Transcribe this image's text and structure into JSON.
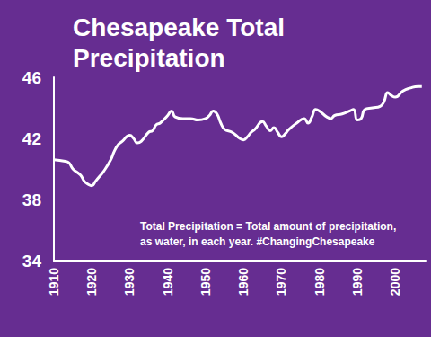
{
  "chart_data": {
    "type": "line",
    "title": "Chesapeake Total\nPrecipitation",
    "annotation": "Total Precipitation = Total amount of precipitation,\nas water, in each year. #ChangingChesapeake",
    "x": [
      1910,
      1913,
      1914,
      1915,
      1917,
      1918,
      1919,
      1920,
      1921,
      1922,
      1923,
      1925,
      1926,
      1927,
      1928,
      1930,
      1931,
      1932,
      1933,
      1935,
      1936,
      1937,
      1938,
      1940,
      1941,
      1942,
      1944,
      1946,
      1948,
      1950,
      1951,
      1952,
      1953,
      1954,
      1955,
      1957,
      1959,
      1960,
      1961,
      1962,
      1963,
      1965,
      1966,
      1967,
      1968,
      1969,
      1970,
      1971,
      1972,
      1974,
      1976,
      1977,
      1978,
      1979,
      1980,
      1982,
      1983,
      1984,
      1986,
      1988,
      1989,
      1990,
      1991,
      1992,
      1994,
      1996,
      1997,
      1998,
      1999,
      2000,
      2002,
      2004,
      2006,
      2007
    ],
    "values": [
      40.6,
      40.5,
      40.4,
      40.0,
      39.6,
      39.2,
      39.0,
      38.9,
      39.2,
      39.5,
      39.8,
      40.6,
      41.2,
      41.6,
      41.8,
      42.2,
      42.0,
      41.7,
      41.8,
      42.4,
      42.5,
      42.9,
      43.0,
      43.5,
      43.8,
      43.4,
      43.3,
      43.3,
      43.2,
      43.3,
      43.5,
      43.8,
      43.6,
      43.0,
      42.6,
      42.4,
      42.0,
      41.9,
      42.1,
      42.4,
      42.6,
      43.1,
      42.8,
      42.5,
      42.7,
      42.4,
      42.1,
      42.3,
      42.6,
      43.0,
      43.3,
      43.0,
      43.4,
      43.9,
      43.8,
      43.4,
      43.3,
      43.5,
      43.6,
      43.8,
      43.9,
      43.2,
      43.3,
      43.9,
      44.0,
      44.1,
      44.4,
      45.0,
      44.8,
      44.7,
      45.1,
      45.3,
      45.4,
      45.4
    ],
    "color": "#ffffff",
    "xlim": [
      1910,
      2008
    ],
    "xticks": [
      1910,
      1920,
      1930,
      1940,
      1950,
      1960,
      1970,
      1980,
      1990,
      2000
    ],
    "ylim": [
      34,
      46
    ],
    "yticks": [
      34,
      38,
      42,
      46
    ],
    "grid": false
  }
}
